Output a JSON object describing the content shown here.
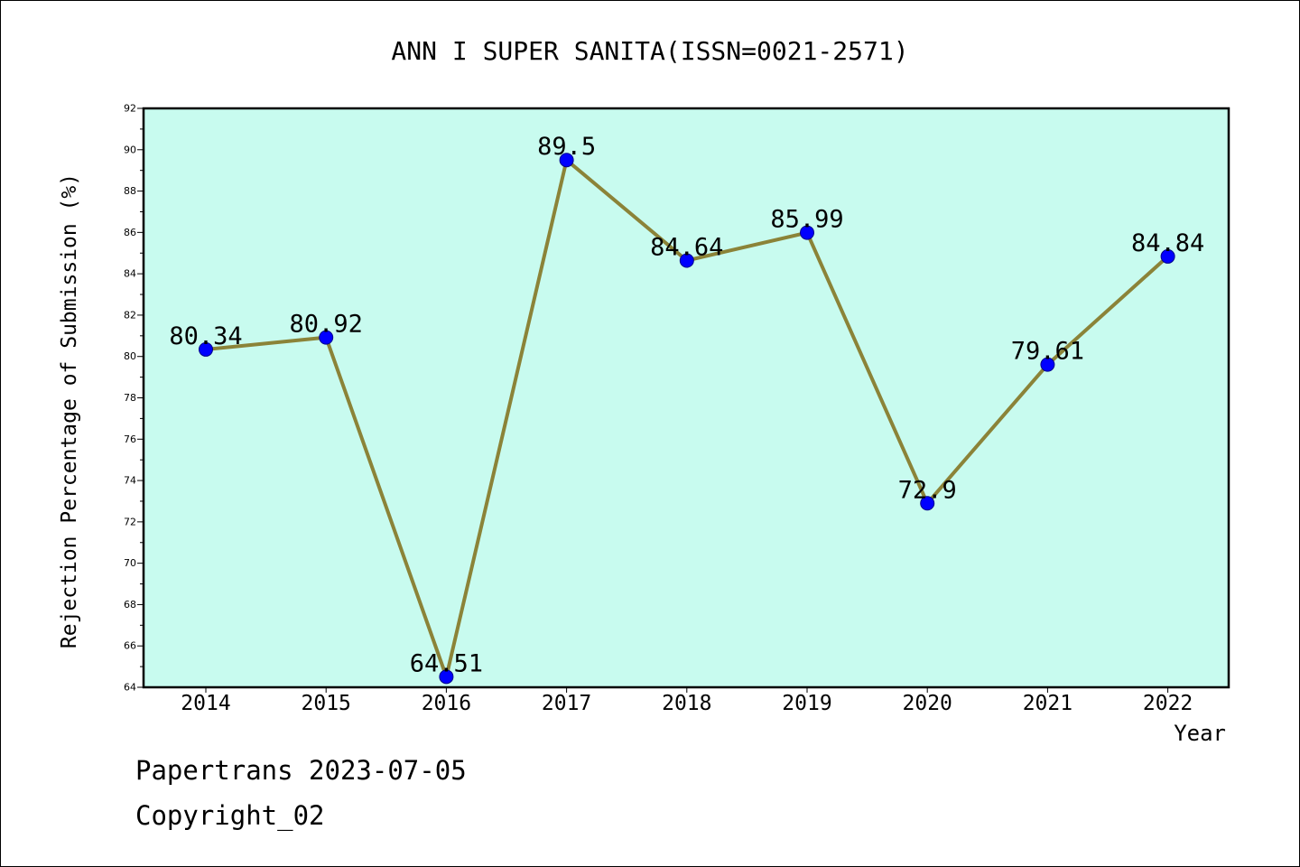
{
  "chart_data": {
    "type": "line",
    "title": "ANN I SUPER SANITA(ISSN=0021-2571)",
    "xlabel": "Year",
    "ylabel": "Rejection Percentage of Submission (%)",
    "categories": [
      "2014",
      "2015",
      "2016",
      "2017",
      "2018",
      "2019",
      "2020",
      "2021",
      "2022"
    ],
    "values": [
      80.34,
      80.92,
      64.51,
      89.5,
      84.64,
      85.99,
      72.9,
      79.61,
      84.84
    ],
    "data_labels": [
      "80.34",
      "80.92",
      "64.51",
      "89.5",
      "84.64",
      "85.99",
      "72.9",
      "79.61",
      "84.84"
    ],
    "ylim": [
      64,
      92
    ],
    "yticks": [
      64,
      66,
      68,
      70,
      72,
      74,
      76,
      78,
      80,
      82,
      84,
      86,
      88,
      90,
      92
    ],
    "grid": false,
    "legend": "none",
    "colors": {
      "plot_background": "#c8fbef",
      "line": "#8b8338",
      "marker": "#0000ff",
      "marker_edge": "#00008b"
    }
  },
  "footer": {
    "line1": "Papertrans 2023-07-05",
    "line2": "Copyright_02"
  }
}
